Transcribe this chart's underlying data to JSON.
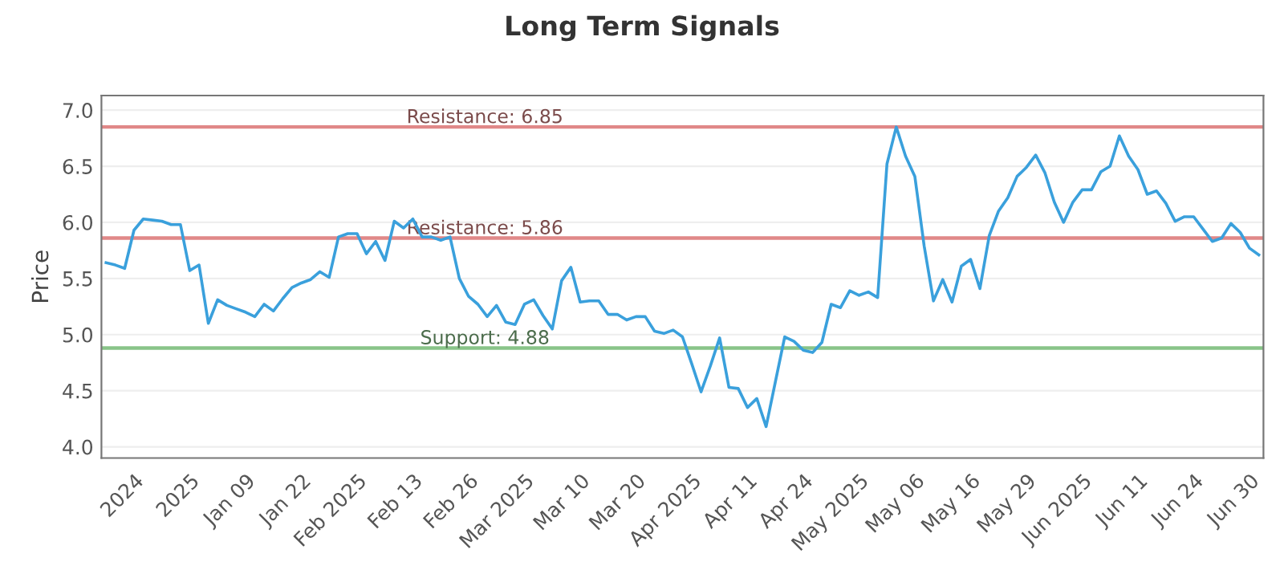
{
  "chart_data": {
    "type": "line",
    "title": "Long Term Signals",
    "ylabel": "Price",
    "categories": [
      null,
      null,
      null,
      "2024",
      null,
      null,
      null,
      null,
      null,
      "2025",
      null,
      null,
      null,
      null,
      null,
      "Jan 09",
      null,
      null,
      null,
      null,
      null,
      "Jan 22",
      null,
      null,
      null,
      null,
      null,
      "Feb 2025",
      null,
      null,
      null,
      null,
      null,
      "Feb 13",
      null,
      null,
      null,
      null,
      null,
      "Feb 26",
      null,
      null,
      null,
      null,
      null,
      "Mar 2025",
      null,
      null,
      null,
      null,
      null,
      "Mar 10",
      null,
      null,
      null,
      null,
      null,
      "Mar 20",
      null,
      null,
      null,
      null,
      null,
      "Apr 2025",
      null,
      null,
      null,
      null,
      null,
      "Apr 11",
      null,
      null,
      null,
      null,
      null,
      "Apr 24",
      null,
      null,
      null,
      null,
      null,
      "May 2025",
      null,
      null,
      null,
      null,
      null,
      "May 06",
      null,
      null,
      null,
      null,
      null,
      "May 16",
      null,
      null,
      null,
      null,
      null,
      "May 29",
      null,
      null,
      null,
      null,
      null,
      "Jun 2025",
      null,
      null,
      null,
      null,
      null,
      "Jun 11",
      null,
      null,
      null,
      null,
      null,
      "Jun 24",
      null,
      null,
      null,
      null,
      null,
      "Jun 30",
      null
    ],
    "series": [
      {
        "color": "#3aa0dc",
        "values": [
          5.64,
          5.62,
          5.59,
          5.93,
          6.03,
          6.02,
          6.01,
          5.98,
          5.98,
          5.57,
          5.62,
          5.1,
          5.31,
          5.26,
          5.23,
          5.2,
          5.16,
          5.27,
          5.21,
          5.32,
          5.42,
          5.46,
          5.49,
          5.56,
          5.51,
          5.87,
          5.9,
          5.9,
          5.72,
          5.83,
          5.66,
          6.01,
          5.95,
          6.03,
          5.87,
          5.87,
          5.84,
          5.87,
          5.5,
          5.34,
          5.27,
          5.16,
          5.26,
          5.11,
          5.09,
          5.27,
          5.31,
          5.17,
          5.05,
          5.48,
          5.6,
          5.29,
          5.3,
          5.3,
          5.18,
          5.18,
          5.13,
          5.16,
          5.16,
          5.03,
          5.01,
          5.04,
          4.98,
          4.74,
          4.49,
          4.72,
          4.97,
          4.53,
          4.52,
          4.35,
          4.43,
          4.18,
          4.58,
          4.98,
          4.94,
          4.86,
          4.84,
          4.93,
          5.27,
          5.24,
          5.39,
          5.35,
          5.38,
          5.33,
          6.52,
          6.85,
          6.59,
          6.41,
          5.79,
          5.3,
          5.49,
          5.29,
          5.61,
          5.67,
          5.41,
          5.88,
          6.1,
          6.22,
          6.41,
          6.49,
          6.6,
          6.44,
          6.18,
          6.0,
          6.18,
          6.29,
          6.29,
          6.45,
          6.5,
          6.77,
          6.59,
          6.47,
          6.25,
          6.28,
          6.17,
          6.01,
          6.05,
          6.05,
          5.94,
          5.83,
          5.86,
          5.99,
          5.91,
          5.77,
          5.71
        ]
      }
    ],
    "ylim": [
      3.9,
      7.13
    ],
    "yticks": [
      {
        "value": 4,
        "label": "4.0"
      },
      {
        "value": 4.5,
        "label": "4.5"
      },
      {
        "value": 5,
        "label": "5.0"
      },
      {
        "value": 5.5,
        "label": "5.5"
      },
      {
        "value": 6,
        "label": "6.0"
      },
      {
        "value": 6.5,
        "label": "6.5"
      },
      {
        "value": 7,
        "label": "7.0"
      }
    ],
    "grid": "y",
    "ref_lines": [
      {
        "axis": "y",
        "value": 6.85,
        "label": "Resistance: 6.85",
        "color": "#e08888"
      },
      {
        "axis": "y",
        "value": 5.86,
        "label": "Resistance: 5.86",
        "color": "#e08888"
      },
      {
        "axis": "y",
        "value": 4.88,
        "label": "Support: 4.88",
        "color": "#88c488"
      }
    ]
  }
}
